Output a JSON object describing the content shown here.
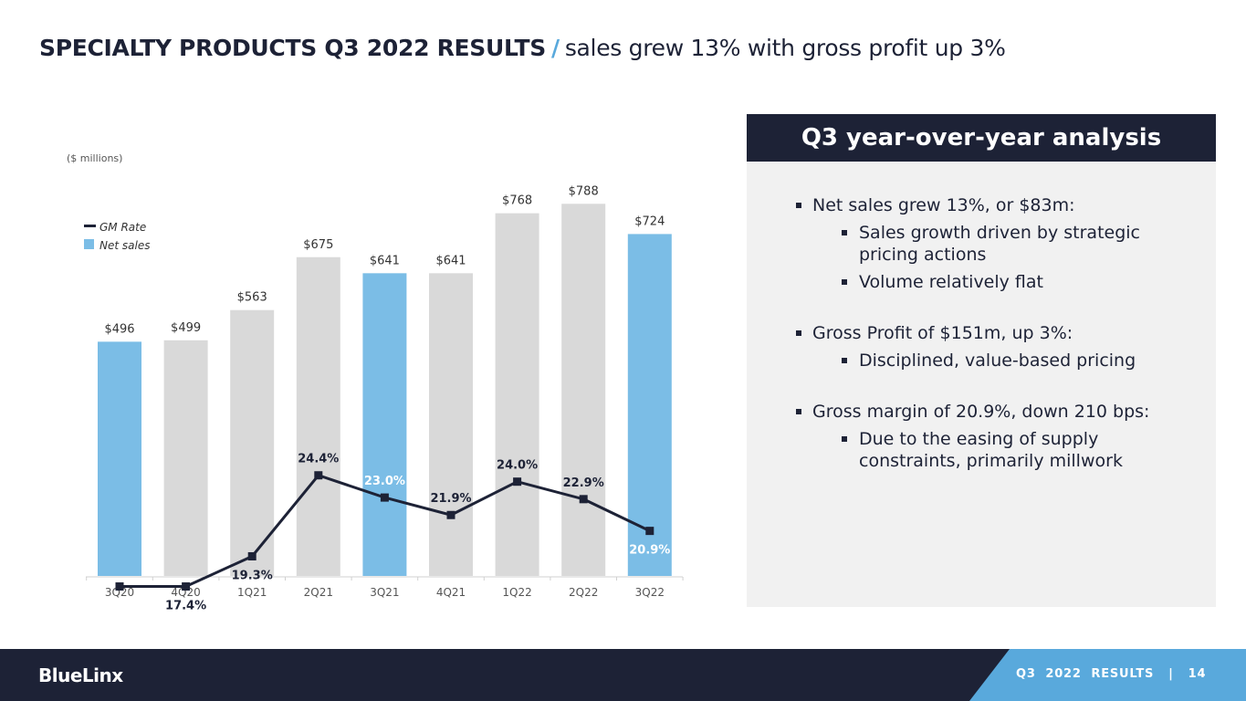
{
  "header": {
    "title_bold": "SPECIALTY PRODUCTS Q3 2022 RESULTS",
    "separator": "/",
    "title_sub": "sales grew 13% with gross profit up 3%"
  },
  "chart_data": {
    "type": "bar",
    "unit_note": "($ millions)",
    "categories": [
      "3Q20",
      "4Q20",
      "1Q21",
      "2Q21",
      "3Q21",
      "4Q21",
      "1Q22",
      "2Q22",
      "3Q22"
    ],
    "series": [
      {
        "name": "Net sales",
        "type": "bar",
        "values": [
          496,
          499,
          563,
          675,
          641,
          641,
          768,
          788,
          724
        ],
        "labels": [
          "$496",
          "$499",
          "$563",
          "$675",
          "$641",
          "$641",
          "$768",
          "$788",
          "$724"
        ],
        "highlighted": [
          true,
          false,
          false,
          false,
          true,
          false,
          false,
          false,
          true
        ],
        "color": "#7bbde6",
        "other_color": "#d9d9d9"
      },
      {
        "name": "GM Rate",
        "type": "line",
        "values": [
          17.4,
          17.4,
          19.3,
          24.4,
          23.0,
          21.9,
          24.0,
          22.9,
          20.9
        ],
        "labels": [
          "17.4%",
          "17.4%",
          "19.3%",
          "24.4%",
          "23.0%",
          "21.9%",
          "24.0%",
          "22.9%",
          "20.9%"
        ],
        "color": "#1d2236"
      }
    ],
    "legend": [
      {
        "name": "GM Rate",
        "type": "line"
      },
      {
        "name": "Net sales",
        "type": "bar"
      }
    ],
    "legend_position": "top-left"
  },
  "panel": {
    "title": "Q3 year-over-year analysis",
    "groups": [
      {
        "text": "Net sales grew 13%, or $83m:",
        "subs": [
          "Sales growth driven by strategic pricing actions",
          "Volume relatively flat"
        ]
      },
      {
        "text": "Gross Profit of $151m, up 3%:",
        "subs": [
          "Disciplined, value-based pricing"
        ]
      },
      {
        "text": "Gross margin of 20.9%, down 210 bps:",
        "subs": [
          "Due to the easing of supply constraints, primarily millwork"
        ]
      }
    ]
  },
  "footer": {
    "brand": "BlueLinx",
    "label": "Q3  2022  RESULTS   |   14"
  },
  "colors": {
    "navy": "#1d2236",
    "accent_blue": "#59a9dc",
    "bar_highlight": "#7bbde6",
    "bar_gray": "#d9d9d9",
    "panel_bg": "#f1f1f1"
  }
}
